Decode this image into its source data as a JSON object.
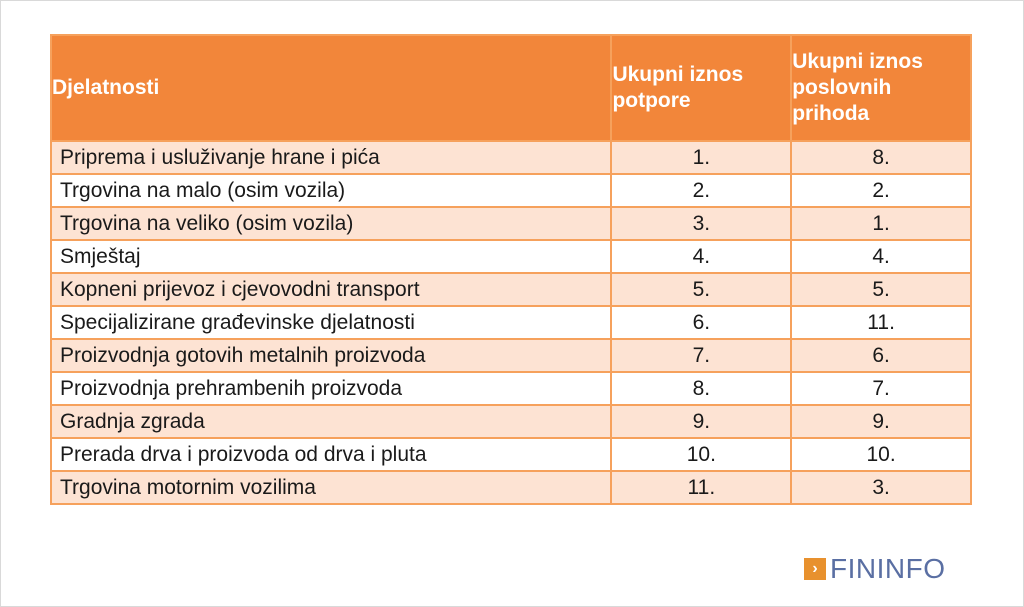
{
  "table": {
    "headers": [
      "Djelatnosti",
      "Ukupni iznos potpore",
      "Ukupni iznos poslovnih prihoda"
    ],
    "rows": [
      {
        "activity": "Priprema i usluživanje hrane i pića",
        "support": "1.",
        "revenue": "8."
      },
      {
        "activity": "Trgovina na malo (osim vozila)",
        "support": "2.",
        "revenue": "2."
      },
      {
        "activity": "Trgovina na veliko (osim vozila)",
        "support": "3.",
        "revenue": "1."
      },
      {
        "activity": "Smještaj",
        "support": "4.",
        "revenue": "4."
      },
      {
        "activity": "Kopneni prijevoz i cjevovodni transport",
        "support": "5.",
        "revenue": "5."
      },
      {
        "activity": "Specijalizirane građevinske djelatnosti",
        "support": "6.",
        "revenue": "11."
      },
      {
        "activity": "Proizvodnja gotovih metalnih proizvoda",
        "support": "7.",
        "revenue": "6."
      },
      {
        "activity": "Proizvodnja prehrambenih proizvoda",
        "support": "8.",
        "revenue": "7."
      },
      {
        "activity": "Gradnja zgrada",
        "support": "9.",
        "revenue": "9."
      },
      {
        "activity": "Prerada drva i proizvoda od drva i pluta",
        "support": "10.",
        "revenue": "10."
      },
      {
        "activity": "Trgovina motornim vozilima",
        "support": "11.",
        "revenue": "3."
      }
    ]
  },
  "logo": {
    "text": "FININFO",
    "icon": "arrow-right-icon",
    "color": "#5a6fa3",
    "accent": "#e8912e"
  },
  "colors": {
    "header": "#f2863a",
    "row_odd": "#fde3d3",
    "row_even": "#ffffff"
  }
}
